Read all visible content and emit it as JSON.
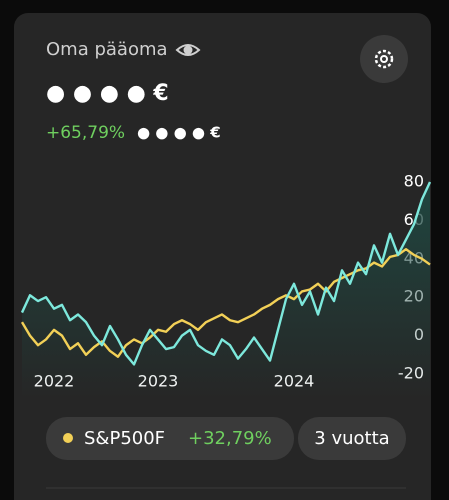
{
  "header": {
    "title": "Oma pääoma",
    "balance": "● ● ● ● €",
    "change": "+65,79%",
    "change_amount": "● ● ● ● €"
  },
  "comparison": {
    "change": "+32,79%",
    "period": "3 vuotta"
  },
  "chart_data": {
    "type": "line",
    "categories": [
      null,
      null,
      null,
      null,
      "2022",
      null,
      null,
      null,
      null,
      null,
      null,
      null,
      null,
      null,
      null,
      null,
      null,
      "2023",
      null,
      null,
      null,
      null,
      null,
      null,
      null,
      null,
      null,
      null,
      null,
      null,
      null,
      null,
      null,
      null,
      "2024",
      null,
      null,
      null,
      null,
      null,
      null,
      null,
      null,
      null,
      null,
      null,
      null,
      null,
      null,
      null,
      null,
      null
    ],
    "series": [
      {
        "color": "#7de8dc",
        "values": [
          12,
          21,
          18,
          20,
          14,
          16,
          8,
          11,
          7,
          0,
          -5,
          5,
          -2,
          -10,
          -15,
          -5,
          3,
          -2,
          -7,
          -6,
          0,
          3,
          -5,
          -8,
          -10,
          -2,
          -5,
          -12,
          -7,
          -1,
          -7,
          -13,
          3,
          19,
          27,
          16,
          23,
          11,
          25,
          18,
          34,
          27,
          38,
          32,
          47,
          38,
          53,
          42,
          50,
          58,
          71,
          80
        ]
      },
      {
        "name": "S&P500F",
        "color": "#f2d057",
        "values": [
          7,
          0,
          -5,
          -2,
          3,
          0,
          -7,
          -4,
          -10,
          -6,
          -3,
          -8,
          -11,
          -5,
          -2,
          -4,
          -1,
          3,
          2,
          6,
          8,
          6,
          3,
          7,
          9,
          11,
          8,
          7,
          9,
          11,
          14,
          16,
          19,
          21,
          19,
          23,
          24,
          27,
          23,
          28,
          30,
          32,
          34,
          35,
          38,
          36,
          41,
          42,
          45,
          42,
          40,
          37
        ]
      }
    ],
    "ylim": [
      -20,
      82
    ],
    "yticks": [
      -20,
      0,
      20,
      40,
      60,
      80
    ]
  }
}
